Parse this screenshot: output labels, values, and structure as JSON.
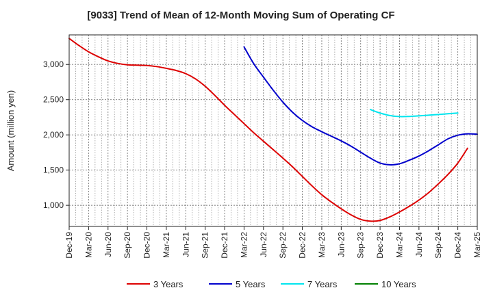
{
  "chart_data": {
    "type": "line",
    "title": "[9033]  Trend of Mean of 12-Month Moving Sum of Operating CF",
    "xlabel": "",
    "ylabel": "Amount (million yen)",
    "x_ticks": [
      "Dec-19",
      "Mar-20",
      "Jun-20",
      "Sep-20",
      "Dec-20",
      "Mar-21",
      "Jun-21",
      "Sep-21",
      "Dec-21",
      "Mar-22",
      "Jun-22",
      "Sep-22",
      "Dec-22",
      "Mar-23",
      "Jun-23",
      "Sep-23",
      "Dec-23",
      "Mar-24",
      "Jun-24",
      "Sep-24",
      "Dec-24",
      "Mar-25"
    ],
    "y_ticks": [
      1000,
      1500,
      2000,
      2500,
      3000
    ],
    "y_tick_labels": [
      "1,000",
      "1,500",
      "2,000",
      "2,500",
      "3,000"
    ],
    "ylim": [
      700,
      3420
    ],
    "grid": true,
    "legend_position": "bottom",
    "series": [
      {
        "name": "3 Years",
        "color": "#dd0000",
        "start_index": 0,
        "values": [
          3370,
          3270,
          3180,
          3110,
          3050,
          3015,
          2995,
          2990,
          2985,
          2970,
          2945,
          2915,
          2870,
          2795,
          2690,
          2560,
          2420,
          2290,
          2160,
          2030,
          1910,
          1790,
          1670,
          1545,
          1410,
          1275,
          1150,
          1045,
          950,
          865,
          800,
          775,
          785,
          835,
          905,
          985,
          1075,
          1180,
          1305,
          1440,
          1600,
          1810
        ]
      },
      {
        "name": "5 Years",
        "color": "#0000cc",
        "start_index": 18,
        "values": [
          3250,
          3010,
          2820,
          2635,
          2465,
          2320,
          2205,
          2115,
          2045,
          1980,
          1915,
          1840,
          1755,
          1670,
          1600,
          1575,
          1590,
          1640,
          1700,
          1775,
          1860,
          1945,
          1995,
          2015,
          2010
        ]
      },
      {
        "name": "7 Years",
        "color": "#00e5ee",
        "start_index": 31,
        "values": [
          2360,
          2310,
          2275,
          2260,
          2262,
          2270,
          2280,
          2290,
          2300,
          2310
        ]
      },
      {
        "name": "10 Years",
        "color": "#008000",
        "start_index": 0,
        "values": []
      }
    ]
  }
}
